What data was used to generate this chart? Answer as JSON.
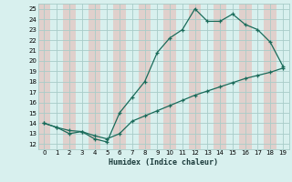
{
  "xlabel": "Humidex (Indice chaleur)",
  "bg_color": "#d8f0ee",
  "plot_bg_color": "#d8f0ee",
  "stripe_color": "#e0d0cc",
  "grid_color": "#a8ccc8",
  "line_color": "#1a6b5a",
  "xlim": [
    -0.5,
    19.5
  ],
  "ylim": [
    11.5,
    25.5
  ],
  "xticks": [
    0,
    1,
    2,
    3,
    4,
    5,
    6,
    7,
    8,
    9,
    10,
    11,
    12,
    13,
    14,
    15,
    16,
    17,
    18,
    19
  ],
  "yticks": [
    12,
    13,
    14,
    15,
    16,
    17,
    18,
    19,
    20,
    21,
    22,
    23,
    24,
    25
  ],
  "line1_x": [
    0,
    1,
    2,
    3,
    4,
    5,
    6,
    7,
    8,
    9,
    10,
    11,
    12,
    13,
    14,
    15,
    16,
    17,
    18,
    19
  ],
  "line1_y": [
    14.0,
    13.6,
    13.0,
    13.2,
    12.5,
    12.2,
    15.0,
    16.5,
    18.0,
    20.8,
    22.2,
    23.0,
    25.0,
    23.8,
    23.8,
    24.5,
    23.5,
    23.0,
    21.8,
    19.5
  ],
  "line2_x": [
    0,
    1,
    2,
    3,
    4,
    5,
    6,
    7,
    8,
    9,
    10,
    11,
    12,
    13,
    14,
    15,
    16,
    17,
    18,
    19
  ],
  "line2_y": [
    14.0,
    13.6,
    13.3,
    13.2,
    12.8,
    12.5,
    13.0,
    14.2,
    14.7,
    15.2,
    15.7,
    16.2,
    16.7,
    17.1,
    17.5,
    17.9,
    18.3,
    18.6,
    18.9,
    19.3
  ]
}
